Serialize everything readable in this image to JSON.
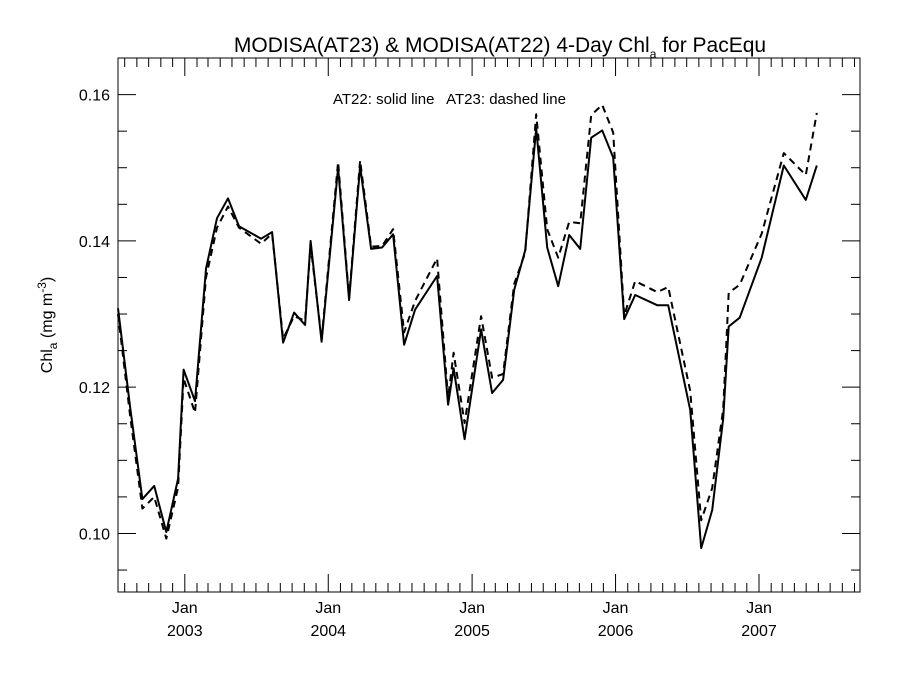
{
  "chart_data": {
    "type": "line",
    "title": {
      "main": "MODISA(AT23) & MODISA(AT22) 4-Day Chl",
      "main_sub": "a",
      "suffix": " for PacEqu"
    },
    "ylabel": {
      "main": "Chl",
      "sub": "a",
      "units": " (mg m",
      "units_sup": "-3",
      "close": ")"
    },
    "annotation": "AT22: solid line   AT23: dashed line",
    "x_range": [
      "2002-07-15",
      "2007-09-15"
    ],
    "ylim": [
      0.092,
      0.165
    ],
    "y_ticks": [
      0.1,
      0.12,
      0.14,
      0.16
    ],
    "y_tick_labels": [
      "0.10",
      "0.12",
      "0.14",
      "0.16"
    ],
    "x_ticks": [
      {
        "date": "2003-01-01",
        "month": "Jan",
        "year": "2003"
      },
      {
        "date": "2004-01-01",
        "month": "Jan",
        "year": "2004"
      },
      {
        "date": "2005-01-01",
        "month": "Jan",
        "year": "2005"
      },
      {
        "date": "2006-01-01",
        "month": "Jan",
        "year": "2006"
      },
      {
        "date": "2007-01-01",
        "month": "Jan",
        "year": "2007"
      }
    ],
    "grid": false,
    "series": [
      {
        "name": "AT22",
        "style": "solid",
        "color": "#000000",
        "points": [
          [
            "2002-07-15",
            0.1308
          ],
          [
            "2002-08-15",
            0.1172
          ],
          [
            "2002-09-15",
            0.1047
          ],
          [
            "2002-10-15",
            0.1065
          ],
          [
            "2002-11-15",
            0.1002
          ],
          [
            "2002-12-15",
            0.1075
          ],
          [
            "2002-12-29",
            0.1224
          ],
          [
            "2003-01-27",
            0.1181
          ],
          [
            "2003-02-24",
            0.1362
          ],
          [
            "2003-03-24",
            0.1431
          ],
          [
            "2003-04-21",
            0.1458
          ],
          [
            "2003-05-19",
            0.142
          ],
          [
            "2003-07-14",
            0.1403
          ],
          [
            "2003-08-11",
            0.1412
          ],
          [
            "2003-09-08",
            0.1261
          ],
          [
            "2003-10-06",
            0.1302
          ],
          [
            "2003-11-03",
            0.1285
          ],
          [
            "2003-11-17",
            0.14
          ],
          [
            "2003-12-15",
            0.1262
          ],
          [
            "2004-01-26",
            0.15
          ],
          [
            "2004-02-23",
            0.1319
          ],
          [
            "2004-03-22",
            0.1502
          ],
          [
            "2004-04-19",
            0.1389
          ],
          [
            "2004-05-17",
            0.1391
          ],
          [
            "2004-06-14",
            0.1409
          ],
          [
            "2004-07-12",
            0.1258
          ],
          [
            "2004-08-09",
            0.1306
          ],
          [
            "2004-10-04",
            0.1352
          ],
          [
            "2004-11-01",
            0.1176
          ],
          [
            "2004-11-15",
            0.1226
          ],
          [
            "2004-12-13",
            0.1129
          ],
          [
            "2005-01-24",
            0.1279
          ],
          [
            "2005-02-21",
            0.1192
          ],
          [
            "2005-03-21",
            0.121
          ],
          [
            "2005-04-18",
            0.1333
          ],
          [
            "2005-05-16",
            0.1387
          ],
          [
            "2005-06-13",
            0.1554
          ],
          [
            "2005-07-11",
            0.1391
          ],
          [
            "2005-08-08",
            0.1338
          ],
          [
            "2005-09-05",
            0.1408
          ],
          [
            "2005-10-03",
            0.1389
          ],
          [
            "2005-10-31",
            0.1541
          ],
          [
            "2005-11-28",
            0.1551
          ],
          [
            "2005-12-26",
            0.1514
          ],
          [
            "2006-01-23",
            0.1293
          ],
          [
            "2006-02-20",
            0.1326
          ],
          [
            "2006-04-17",
            0.1312
          ],
          [
            "2006-05-15",
            0.1312
          ],
          [
            "2006-07-10",
            0.1169
          ],
          [
            "2006-08-07",
            0.098
          ],
          [
            "2006-09-04",
            0.1032
          ],
          [
            "2006-10-02",
            0.1157
          ],
          [
            "2006-10-16",
            0.1283
          ],
          [
            "2006-11-13",
            0.1295
          ],
          [
            "2007-01-08",
            0.1377
          ],
          [
            "2007-03-05",
            0.1503
          ],
          [
            "2007-04-30",
            0.1456
          ],
          [
            "2007-05-28",
            0.1503
          ]
        ]
      },
      {
        "name": "AT23",
        "style": "dashed",
        "color": "#000000",
        "points": [
          [
            "2002-07-15",
            0.13
          ],
          [
            "2002-08-15",
            0.116
          ],
          [
            "2002-09-15",
            0.1034
          ],
          [
            "2002-10-15",
            0.105
          ],
          [
            "2002-11-15",
            0.0993
          ],
          [
            "2002-12-15",
            0.1063
          ],
          [
            "2002-12-29",
            0.1212
          ],
          [
            "2003-01-27",
            0.1165
          ],
          [
            "2003-02-24",
            0.135
          ],
          [
            "2003-03-24",
            0.1418
          ],
          [
            "2003-04-21",
            0.1447
          ],
          [
            "2003-05-19",
            0.1418
          ],
          [
            "2003-07-14",
            0.1396
          ],
          [
            "2003-08-11",
            0.141
          ],
          [
            "2003-09-08",
            0.1266
          ],
          [
            "2003-10-06",
            0.1297
          ],
          [
            "2003-11-03",
            0.1291
          ],
          [
            "2003-11-17",
            0.1394
          ],
          [
            "2003-12-15",
            0.1266
          ],
          [
            "2004-01-26",
            0.1508
          ],
          [
            "2004-02-23",
            0.1322
          ],
          [
            "2004-03-22",
            0.151
          ],
          [
            "2004-04-19",
            0.1392
          ],
          [
            "2004-05-17",
            0.1393
          ],
          [
            "2004-06-14",
            0.1416
          ],
          [
            "2004-07-12",
            0.1275
          ],
          [
            "2004-08-09",
            0.1318
          ],
          [
            "2004-10-04",
            0.1376
          ],
          [
            "2004-11-01",
            0.1185
          ],
          [
            "2004-11-15",
            0.1247
          ],
          [
            "2004-12-13",
            0.1151
          ],
          [
            "2005-01-24",
            0.1297
          ],
          [
            "2005-02-21",
            0.1213
          ],
          [
            "2005-03-21",
            0.1218
          ],
          [
            "2005-04-18",
            0.1341
          ],
          [
            "2005-05-16",
            0.1384
          ],
          [
            "2005-06-13",
            0.1573
          ],
          [
            "2005-07-11",
            0.1416
          ],
          [
            "2005-08-08",
            0.1377
          ],
          [
            "2005-09-05",
            0.1426
          ],
          [
            "2005-10-03",
            0.1424
          ],
          [
            "2005-10-31",
            0.1572
          ],
          [
            "2005-11-28",
            0.1586
          ],
          [
            "2005-12-26",
            0.1548
          ],
          [
            "2006-01-23",
            0.1298
          ],
          [
            "2006-02-20",
            0.1345
          ],
          [
            "2006-04-17",
            0.133
          ],
          [
            "2006-05-15",
            0.1337
          ],
          [
            "2006-07-10",
            0.1195
          ],
          [
            "2006-08-07",
            0.1018
          ],
          [
            "2006-09-04",
            0.1062
          ],
          [
            "2006-10-02",
            0.117
          ],
          [
            "2006-10-16",
            0.1329
          ],
          [
            "2006-11-13",
            0.134
          ],
          [
            "2007-01-08",
            0.141
          ],
          [
            "2007-03-05",
            0.152
          ],
          [
            "2007-04-30",
            0.149
          ],
          [
            "2007-05-28",
            0.1575
          ]
        ]
      }
    ]
  }
}
